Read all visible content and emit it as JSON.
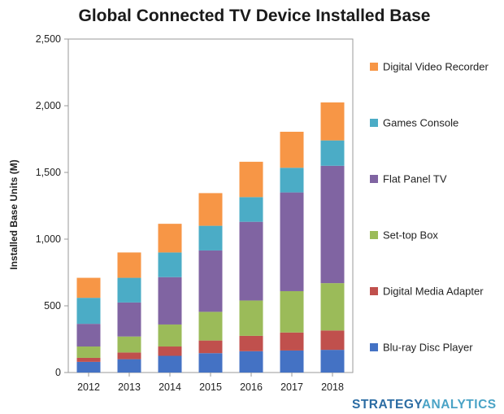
{
  "chart_data": {
    "type": "bar",
    "stacked": true,
    "title": "Global Connected TV Device Installed Base",
    "xlabel": "",
    "ylabel": "Installed Base Units (M)",
    "ylim": [
      0,
      2500
    ],
    "yticks": [
      0,
      500,
      1000,
      1500,
      2000,
      2500
    ],
    "ytick_labels": [
      "0",
      "500",
      "1,000",
      "1,500",
      "2,000",
      "2,500"
    ],
    "categories": [
      "2012",
      "2013",
      "2014",
      "2015",
      "2016",
      "2017",
      "2018"
    ],
    "grid": false,
    "legend_position": "right",
    "series": [
      {
        "name": "Blu-ray Disc Player",
        "color": "#4472c4",
        "values": [
          80,
          100,
          125,
          145,
          160,
          165,
          170
        ]
      },
      {
        "name": "Digital Media Adapter",
        "color": "#c0504d",
        "values": [
          30,
          50,
          70,
          95,
          115,
          135,
          145
        ]
      },
      {
        "name": "Set-top Box",
        "color": "#9bbb59",
        "values": [
          85,
          120,
          165,
          215,
          265,
          310,
          355
        ]
      },
      {
        "name": "Flat Panel TV",
        "color": "#8064a2",
        "values": [
          170,
          255,
          355,
          460,
          590,
          740,
          880
        ]
      },
      {
        "name": "Games Console",
        "color": "#4bacc6",
        "values": [
          195,
          185,
          185,
          185,
          185,
          185,
          190
        ]
      },
      {
        "name": "Digital Video Recorder",
        "color": "#f79646",
        "values": [
          150,
          190,
          215,
          245,
          265,
          270,
          285
        ]
      }
    ]
  },
  "legend_order": [
    "Digital Video Recorder",
    "Games Console",
    "Flat Panel TV",
    "Set-top Box",
    "Digital Media Adapter",
    "Blu-ray Disc Player"
  ],
  "brand": {
    "part1": "STRATEGY",
    "part2": "ANALYTICS"
  }
}
